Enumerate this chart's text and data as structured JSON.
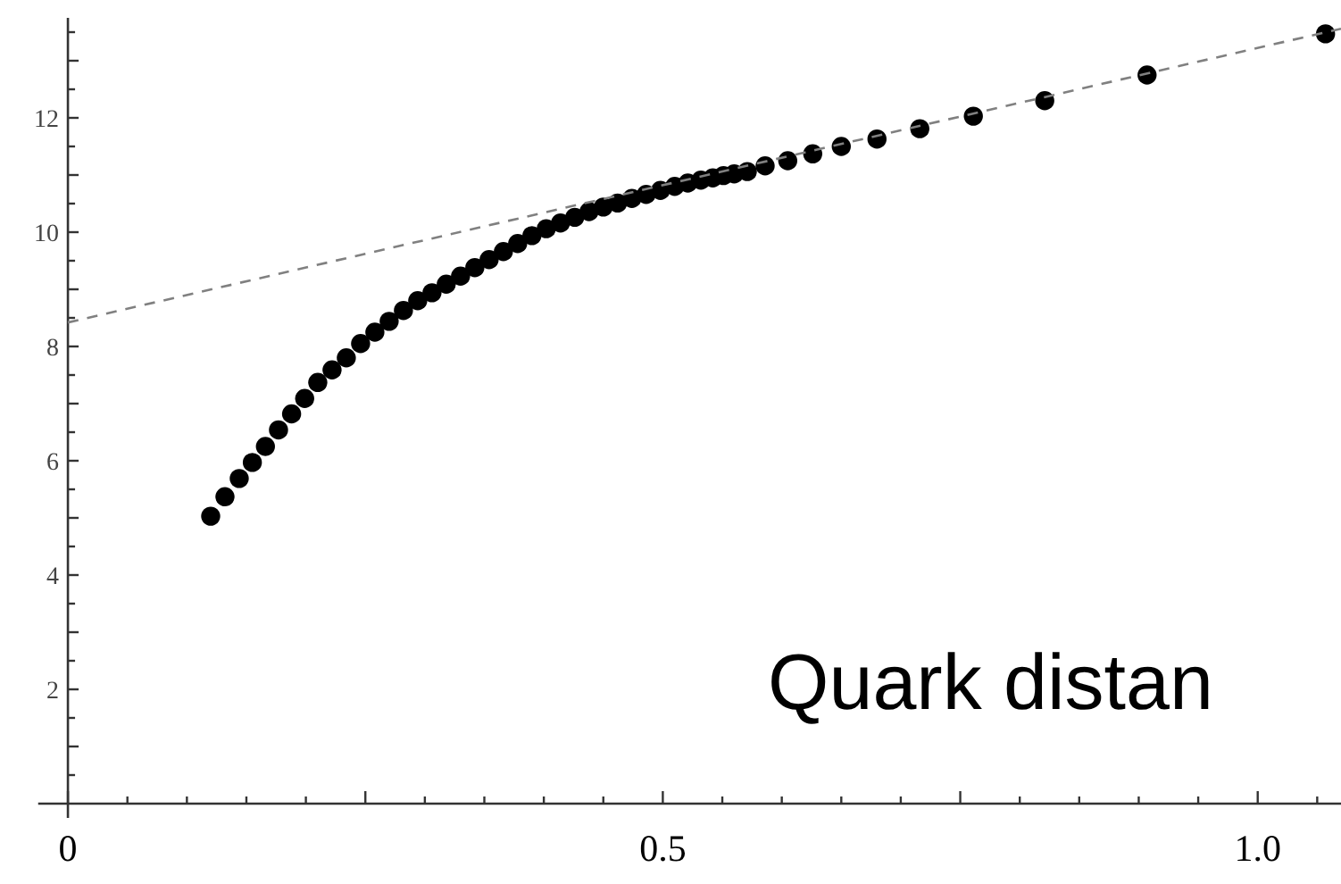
{
  "chart_data": {
    "type": "scatter",
    "marker": "circle",
    "grid": false,
    "xlim": [
      -0.025,
      1.07
    ],
    "ylim": [
      -0.25,
      13.75
    ],
    "xticks": [
      0,
      {
        "value": 0.05,
        "label": null
      },
      {
        "value": 0.1,
        "label": null
      },
      {
        "value": 0.15,
        "label": null
      },
      {
        "value": 0.2,
        "label": null
      },
      {
        "value": 0.25,
        "label": null
      },
      {
        "value": 0.3,
        "label": null
      },
      {
        "value": 0.35,
        "label": null
      },
      {
        "value": 0.4,
        "label": null
      },
      {
        "value": 0.45,
        "label": null
      },
      0.5,
      {
        "value": 0.55,
        "label": null
      },
      {
        "value": 0.6,
        "label": null
      },
      {
        "value": 0.65,
        "label": null
      },
      {
        "value": 0.7,
        "label": null
      },
      {
        "value": 0.75,
        "label": null
      },
      {
        "value": 0.8,
        "label": null
      },
      {
        "value": 0.85,
        "label": null
      },
      {
        "value": 0.9,
        "label": null
      },
      {
        "value": 0.95,
        "label": null
      },
      {
        "value": 1.0,
        "label": "1.0"
      },
      {
        "value": 1.05,
        "label": null
      }
    ],
    "yticks": [
      {
        "value": 0.5,
        "label": null
      },
      {
        "value": 1,
        "label": null
      },
      {
        "value": 1.5,
        "label": null
      },
      2,
      {
        "value": 2.5,
        "label": null
      },
      {
        "value": 3,
        "label": null
      },
      {
        "value": 3.5,
        "label": null
      },
      4,
      {
        "value": 4.5,
        "label": null
      },
      {
        "value": 5,
        "label": null
      },
      {
        "value": 5.5,
        "label": null
      },
      6,
      {
        "value": 6.5,
        "label": null
      },
      {
        "value": 7,
        "label": null
      },
      {
        "value": 7.5,
        "label": null
      },
      8,
      {
        "value": 8.5,
        "label": null
      },
      {
        "value": 9,
        "label": null
      },
      {
        "value": 9.5,
        "label": null
      },
      10,
      {
        "value": 10.5,
        "label": null
      },
      {
        "value": 11,
        "label": null
      },
      {
        "value": 11.5,
        "label": null
      },
      12,
      {
        "value": 12.5,
        "label": null
      },
      {
        "value": 13,
        "label": null
      },
      {
        "value": 13.5,
        "label": null
      }
    ],
    "annotations": [
      "Quark distan"
    ],
    "series": [
      {
        "color": "#000000",
        "x": [
          0.12,
          0.132,
          0.144,
          0.155,
          0.166,
          0.177,
          0.188,
          0.199,
          0.21,
          0.222,
          0.234,
          0.246,
          0.258,
          0.27,
          0.282,
          0.294,
          0.306,
          0.318,
          0.33,
          0.342,
          0.354,
          0.366,
          0.378,
          0.39,
          0.402,
          0.414,
          0.426,
          0.438,
          0.45,
          0.462,
          0.474,
          0.486,
          0.498,
          0.51,
          0.521,
          0.532,
          0.542,
          0.551,
          0.56,
          0.571,
          0.586,
          0.605,
          0.626,
          0.65,
          0.68,
          0.716,
          0.761,
          0.821,
          0.907,
          1.057
        ],
        "values": [
          5.03,
          5.37,
          5.69,
          5.97,
          6.25,
          6.54,
          6.82,
          7.09,
          7.37,
          7.59,
          7.8,
          8.05,
          8.25,
          8.44,
          8.63,
          8.8,
          8.94,
          9.09,
          9.23,
          9.38,
          9.52,
          9.66,
          9.8,
          9.94,
          10.06,
          10.16,
          10.26,
          10.36,
          10.44,
          10.51,
          10.59,
          10.66,
          10.73,
          10.8,
          10.86,
          10.91,
          10.95,
          10.99,
          11.02,
          11.06,
          11.16,
          11.25,
          11.37,
          11.5,
          11.63,
          11.81,
          12.03,
          12.3,
          12.75,
          13.47
        ]
      },
      {
        "type": "line",
        "color": "#808080",
        "line_style": "dashed",
        "marker": "none",
        "x": [
          0,
          1.07
        ],
        "values": [
          8.42,
          13.56
        ]
      }
    ]
  }
}
